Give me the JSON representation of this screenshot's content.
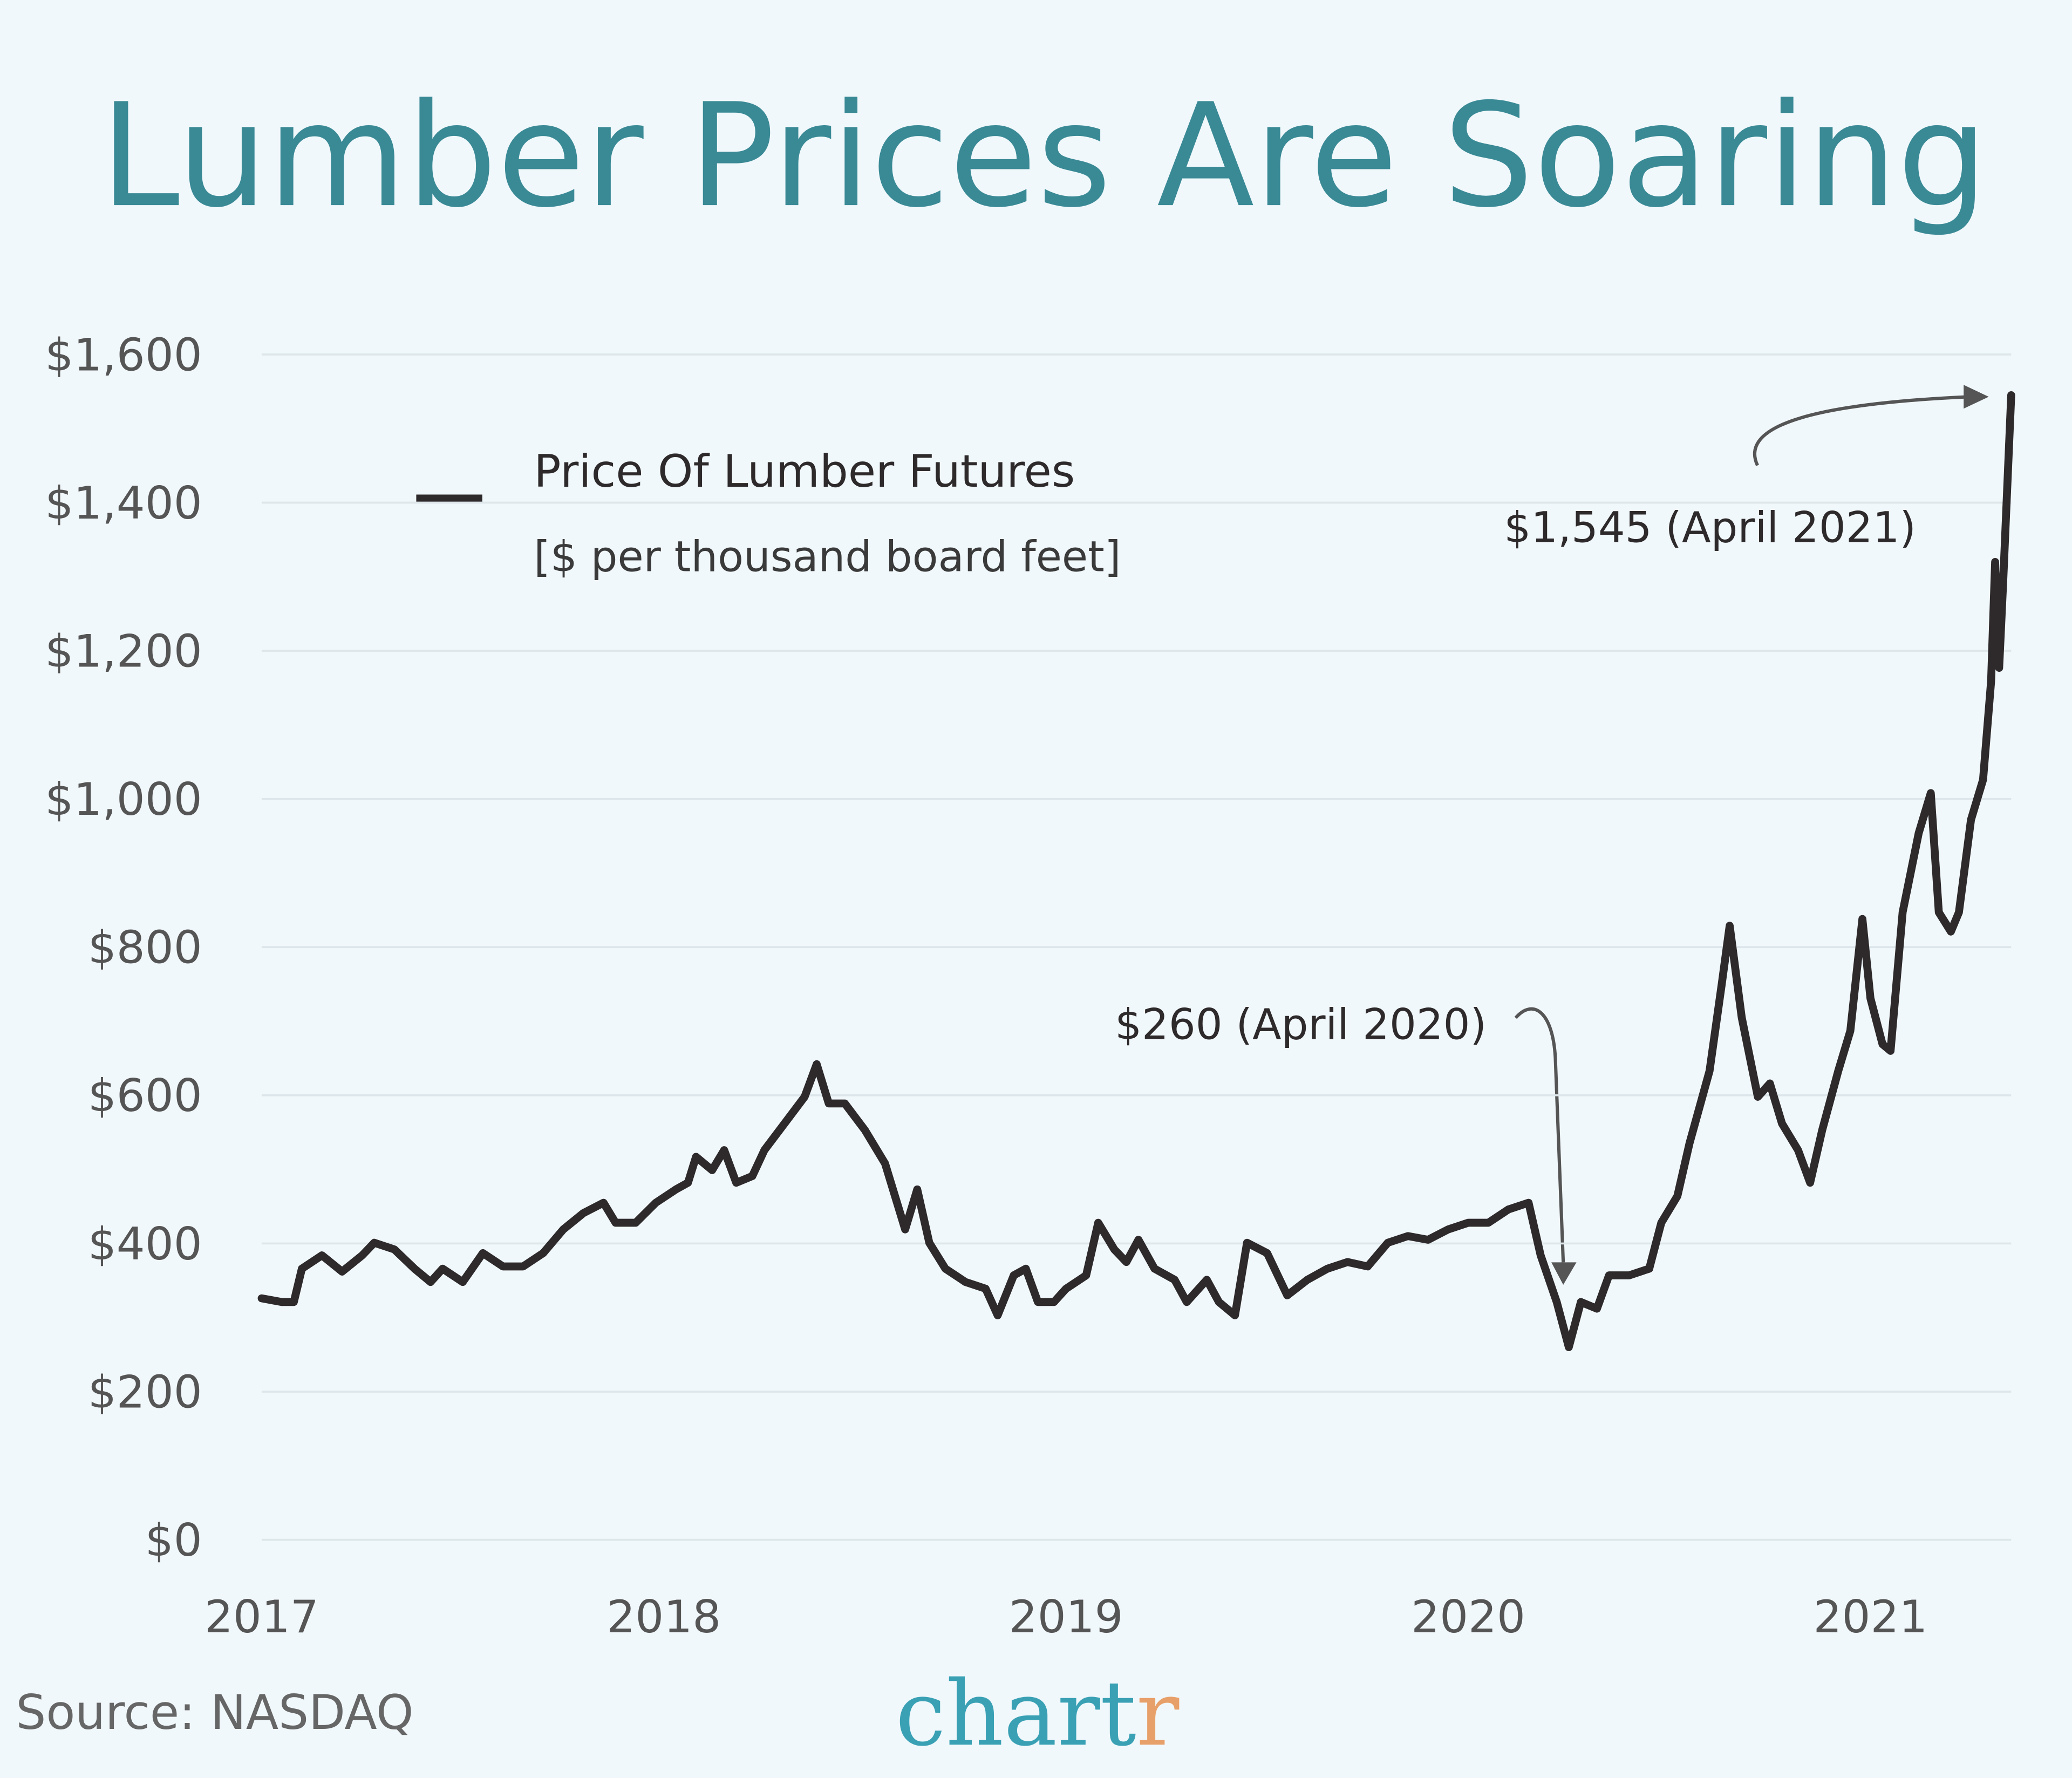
{
  "chart_data": {
    "type": "line",
    "title": "Lumber Prices Are Soaring",
    "x": [
      2017.0,
      2017.05,
      2017.08,
      2017.1,
      2017.15,
      2017.2,
      2017.25,
      2017.28,
      2017.33,
      2017.38,
      2017.42,
      2017.45,
      2017.5,
      2017.55,
      2017.6,
      2017.65,
      2017.7,
      2017.75,
      2017.8,
      2017.85,
      2017.88,
      2017.93,
      2017.98,
      2018.03,
      2018.06,
      2018.08,
      2018.12,
      2018.15,
      2018.18,
      2018.22,
      2018.25,
      2018.3,
      2018.35,
      2018.38,
      2018.41,
      2018.45,
      2018.5,
      2018.55,
      2018.6,
      2018.63,
      2018.66,
      2018.7,
      2018.75,
      2018.8,
      2018.83,
      2018.87,
      2018.9,
      2018.93,
      2018.97,
      2019.0,
      2019.05,
      2019.08,
      2019.12,
      2019.15,
      2019.18,
      2019.22,
      2019.27,
      2019.3,
      2019.35,
      2019.38,
      2019.42,
      2019.45,
      2019.5,
      2019.55,
      2019.6,
      2019.65,
      2019.7,
      2019.75,
      2019.8,
      2019.85,
      2019.9,
      2019.95,
      2020.0,
      2020.05,
      2020.1,
      2020.15,
      2020.18,
      2020.22,
      2020.25,
      2020.28,
      2020.32,
      2020.35,
      2020.4,
      2020.45,
      2020.48,
      2020.52,
      2020.55,
      2020.6,
      2020.63,
      2020.65,
      2020.68,
      2020.72,
      2020.75,
      2020.78,
      2020.82,
      2020.85,
      2020.88,
      2020.92,
      2020.95,
      2020.98,
      2021.0,
      2021.03,
      2021.05,
      2021.08,
      2021.12,
      2021.15,
      2021.17,
      2021.2,
      2021.22,
      2021.25,
      2021.28,
      2021.3,
      2021.31,
      2021.32,
      2021.33,
      2021.35
    ],
    "series": [
      {
        "name": "Price Of Lumber Futures",
        "color": "#2e2a2b",
        "values": [
          326,
          321,
          321,
          366,
          384,
          362,
          384,
          401,
          392,
          366,
          348,
          366,
          348,
          387,
          369,
          369,
          387,
          419,
          441,
          455,
          428,
          428,
          455,
          473,
          482,
          517,
          499,
          526,
          482,
          491,
          526,
          562,
          598,
          642,
          589,
          589,
          553,
          508,
          419,
          473,
          401,
          366,
          348,
          339,
          303,
          357,
          366,
          321,
          321,
          339,
          357,
          428,
          392,
          375,
          405,
          366,
          351,
          321,
          351,
          321,
          303,
          401,
          387,
          330,
          351,
          366,
          375,
          369,
          401,
          410,
          405,
          419,
          428,
          428,
          446,
          455,
          384,
          321,
          260,
          321,
          312,
          357,
          357,
          366,
          428,
          464,
          535,
          633,
          749,
          829,
          705,
          598,
          616,
          562,
          526,
          482,
          553,
          633,
          687,
          838,
          731,
          669,
          660,
          847,
          954,
          1008,
          847,
          821,
          847,
          972,
          1026,
          1159,
          1320,
          1177,
          1293,
          1545
        ]
      }
    ],
    "legend_note": "[$ per thousand board feet]",
    "xlim": [
      2017,
      2021.35
    ],
    "xticks": [
      2017,
      2018,
      2019,
      2020,
      2021
    ],
    "ylim": [
      0,
      1600
    ],
    "yticks": [
      {
        "value": 0,
        "label": "$0"
      },
      {
        "value": 200,
        "label": "$200"
      },
      {
        "value": 400,
        "label": "$400"
      },
      {
        "value": 600,
        "label": "$600"
      },
      {
        "value": 800,
        "label": "$800"
      },
      {
        "value": 1000,
        "label": "$1,000"
      },
      {
        "value": 1200,
        "label": "$1,200"
      },
      {
        "value": 1400,
        "label": "$1,400"
      },
      {
        "value": 1600,
        "label": "$1,600"
      }
    ],
    "grid": true,
    "annotations": [
      "$1,545 (April 2021)",
      "$260 (April 2020)"
    ],
    "source": "Source: NASDAQ",
    "logo": [
      "chart",
      "r"
    ]
  }
}
